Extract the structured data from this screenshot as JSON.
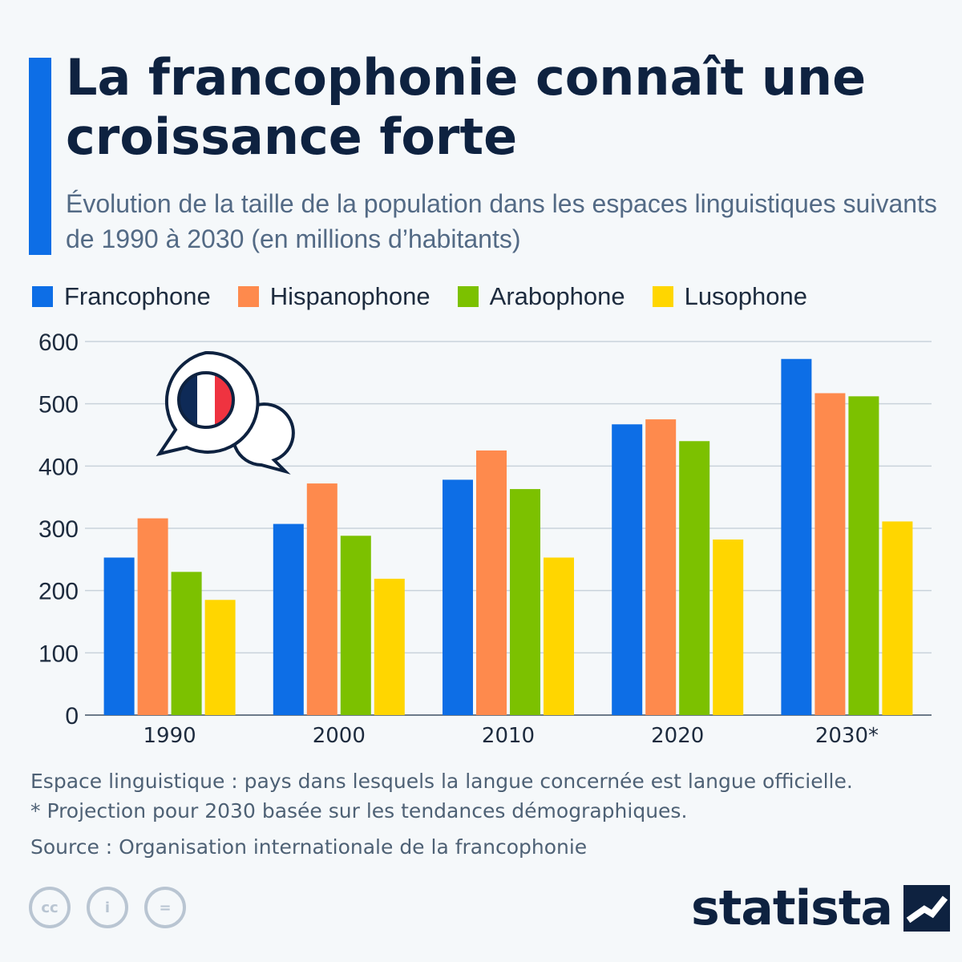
{
  "header": {
    "title": "La francophonie connaît une croissance forte",
    "subtitle": "Évolution de la taille de la population dans les espaces linguistiques suivants de 1990 à 2030 (en millions d’habitants)"
  },
  "colors": {
    "francophone": "#0d6ee6",
    "hispanophone": "#fe8a4d",
    "arabophone": "#7cc100",
    "lusophone": "#ffd600",
    "accent": "#0d6ee6",
    "title": "#0e2240"
  },
  "legend": [
    {
      "label": "Francophone",
      "color": "#0d6ee6"
    },
    {
      "label": "Hispanophone",
      "color": "#fe8a4d"
    },
    {
      "label": "Arabophone",
      "color": "#7cc100"
    },
    {
      "label": "Lusophone",
      "color": "#ffd600"
    }
  ],
  "chart_data": {
    "type": "bar",
    "categories": [
      "1990",
      "2000",
      "2010",
      "2020",
      "2030*"
    ],
    "series": [
      {
        "name": "Francophone",
        "color": "#0d6ee6",
        "values": [
          253,
          307,
          378,
          467,
          572
        ]
      },
      {
        "name": "Hispanophone",
        "color": "#fe8a4d",
        "values": [
          316,
          372,
          425,
          475,
          517
        ]
      },
      {
        "name": "Arabophone",
        "color": "#7cc100",
        "values": [
          230,
          288,
          363,
          440,
          512
        ]
      },
      {
        "name": "Lusophone",
        "color": "#ffd600",
        "values": [
          185,
          219,
          253,
          282,
          311
        ]
      }
    ],
    "ylim": [
      0,
      600
    ],
    "yticks": [
      0,
      100,
      200,
      300,
      400,
      500,
      600
    ],
    "grid": true,
    "legend_position": "top",
    "decoration": "french-flag-speech-bubble-icon"
  },
  "notes": {
    "definition": "Espace linguistique : pays dans lesquels la langue concernée est langue officielle.",
    "projection": "* Projection pour 2030 basée sur les tendances démographiques.",
    "source": "Source : Organisation internationale de la francophonie"
  },
  "license_icons": [
    "cc-icon",
    "attribution-icon",
    "no-derivatives-icon"
  ],
  "license_glyphs": {
    "cc": "cc",
    "attribution": "i",
    "nd": "="
  },
  "brand": {
    "name": "statista"
  }
}
